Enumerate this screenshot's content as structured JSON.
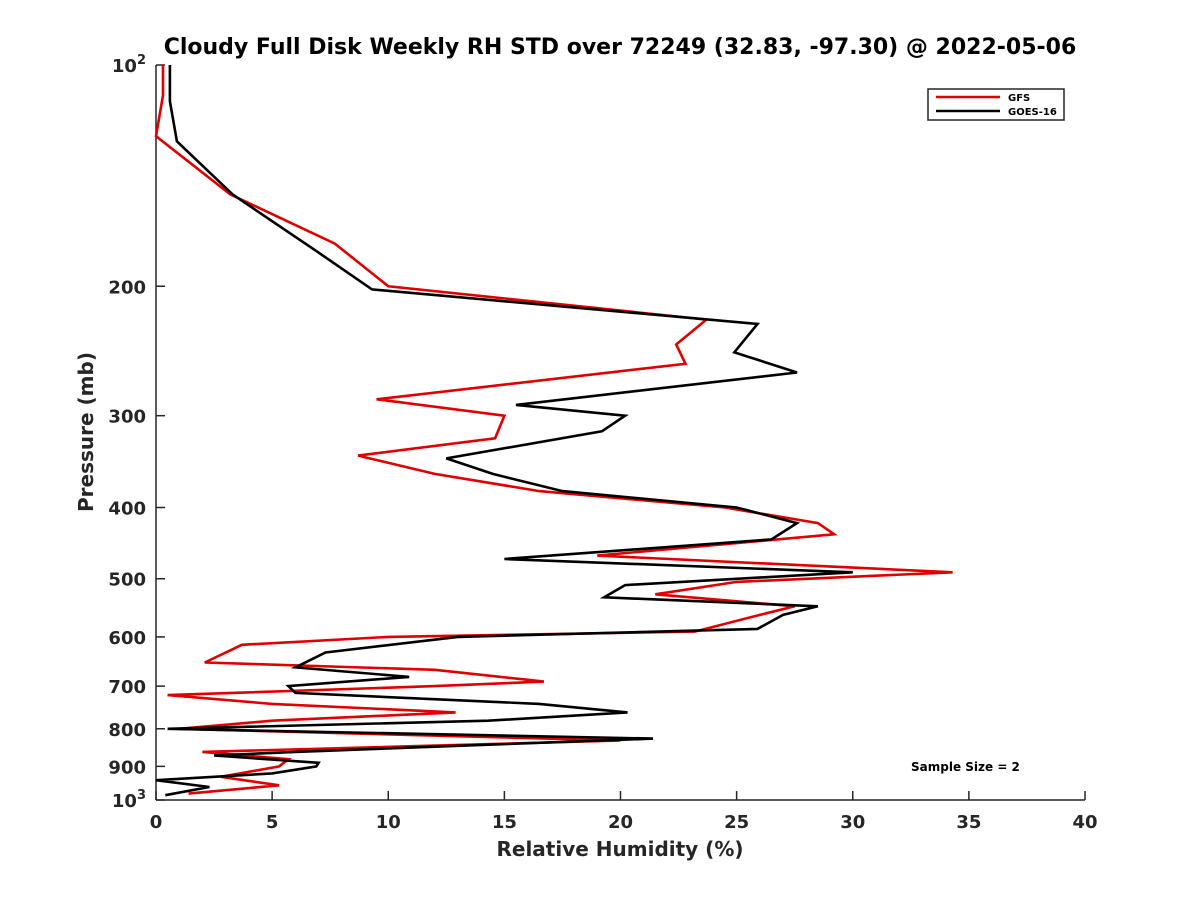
{
  "chart_data": {
    "type": "line",
    "title": "Cloudy Full Disk Weekly RH STD over 72249 (32.83, -97.30) @ 2022-05-06",
    "xlabel": "Relative Humidity (%)",
    "ylabel": "Pressure (mb)",
    "xlim": [
      0,
      40
    ],
    "ylim": [
      100,
      1000
    ],
    "y_scale": "log",
    "y_reversed": true,
    "grid": false,
    "legend_position": "top-right",
    "x_ticks": [
      "0",
      "5",
      "10",
      "15",
      "20",
      "25",
      "30",
      "35",
      "40"
    ],
    "y_ticks": [
      {
        "value": 100,
        "base": "10",
        "exp": "2"
      },
      {
        "value": 200,
        "label": "200"
      },
      {
        "value": 300,
        "label": "300"
      },
      {
        "value": 400,
        "label": "400"
      },
      {
        "value": 500,
        "label": "500"
      },
      {
        "value": 600,
        "label": "600"
      },
      {
        "value": 700,
        "label": "700"
      },
      {
        "value": 800,
        "label": "800"
      },
      {
        "value": 900,
        "label": "900"
      },
      {
        "value": 1000,
        "base": "10",
        "exp": "3"
      }
    ],
    "annotation": "Sample Size = 2",
    "series": [
      {
        "name": "GFS",
        "color": "#e00000",
        "points": [
          [
            0.3,
            100
          ],
          [
            0.3,
            110
          ],
          [
            0.0,
            125
          ],
          [
            3.2,
            150
          ],
          [
            7.7,
            175
          ],
          [
            10.0,
            200
          ],
          [
            23.7,
            222
          ],
          [
            22.4,
            240
          ],
          [
            22.8,
            255
          ],
          [
            9.5,
            285
          ],
          [
            15.0,
            300
          ],
          [
            14.6,
            322
          ],
          [
            8.7,
            340
          ],
          [
            12.0,
            360
          ],
          [
            16.5,
            380
          ],
          [
            24.5,
            400
          ],
          [
            28.5,
            420
          ],
          [
            29.2,
            435
          ],
          [
            19.0,
            465
          ],
          [
            34.3,
            490
          ],
          [
            25.0,
            505
          ],
          [
            21.5,
            525
          ],
          [
            27.5,
            545
          ],
          [
            26.0,
            560
          ],
          [
            23.2,
            590
          ],
          [
            10.0,
            600
          ],
          [
            3.7,
            615
          ],
          [
            2.1,
            650
          ],
          [
            12.0,
            665
          ],
          [
            16.7,
            690
          ],
          [
            12.0,
            700
          ],
          [
            0.5,
            720
          ],
          [
            5.0,
            740
          ],
          [
            12.9,
            760
          ],
          [
            5.0,
            780
          ],
          [
            1.0,
            800
          ],
          [
            20.0,
            830
          ],
          [
            2.0,
            860
          ],
          [
            5.7,
            880
          ],
          [
            5.3,
            900
          ],
          [
            2.8,
            930
          ],
          [
            5.3,
            955
          ],
          [
            1.4,
            980
          ]
        ]
      },
      {
        "name": "GOES-16",
        "color": "#000000",
        "points": [
          [
            0.6,
            100
          ],
          [
            0.6,
            112
          ],
          [
            0.9,
            127
          ],
          [
            3.3,
            150
          ],
          [
            7.0,
            180
          ],
          [
            9.3,
            202
          ],
          [
            25.9,
            225
          ],
          [
            24.9,
            246
          ],
          [
            27.6,
            262
          ],
          [
            15.5,
            290
          ],
          [
            20.2,
            300
          ],
          [
            19.2,
            315
          ],
          [
            12.5,
            343
          ],
          [
            14.5,
            360
          ],
          [
            17.5,
            380
          ],
          [
            25.0,
            400
          ],
          [
            27.6,
            420
          ],
          [
            26.5,
            442
          ],
          [
            15.0,
            470
          ],
          [
            30.0,
            490
          ],
          [
            20.2,
            510
          ],
          [
            19.3,
            530
          ],
          [
            28.5,
            545
          ],
          [
            27.0,
            560
          ],
          [
            25.9,
            585
          ],
          [
            13.0,
            600
          ],
          [
            7.3,
            630
          ],
          [
            6.0,
            660
          ],
          [
            10.9,
            680
          ],
          [
            5.7,
            700
          ],
          [
            6.0,
            715
          ],
          [
            16.5,
            740
          ],
          [
            20.3,
            760
          ],
          [
            14.3,
            780
          ],
          [
            0.5,
            800
          ],
          [
            21.4,
            825
          ],
          [
            6.0,
            860
          ],
          [
            2.5,
            870
          ],
          [
            7.0,
            890
          ],
          [
            6.9,
            900
          ],
          [
            5.0,
            920
          ],
          [
            0.0,
            940
          ],
          [
            2.3,
            960
          ],
          [
            0.4,
            985
          ]
        ]
      }
    ]
  }
}
